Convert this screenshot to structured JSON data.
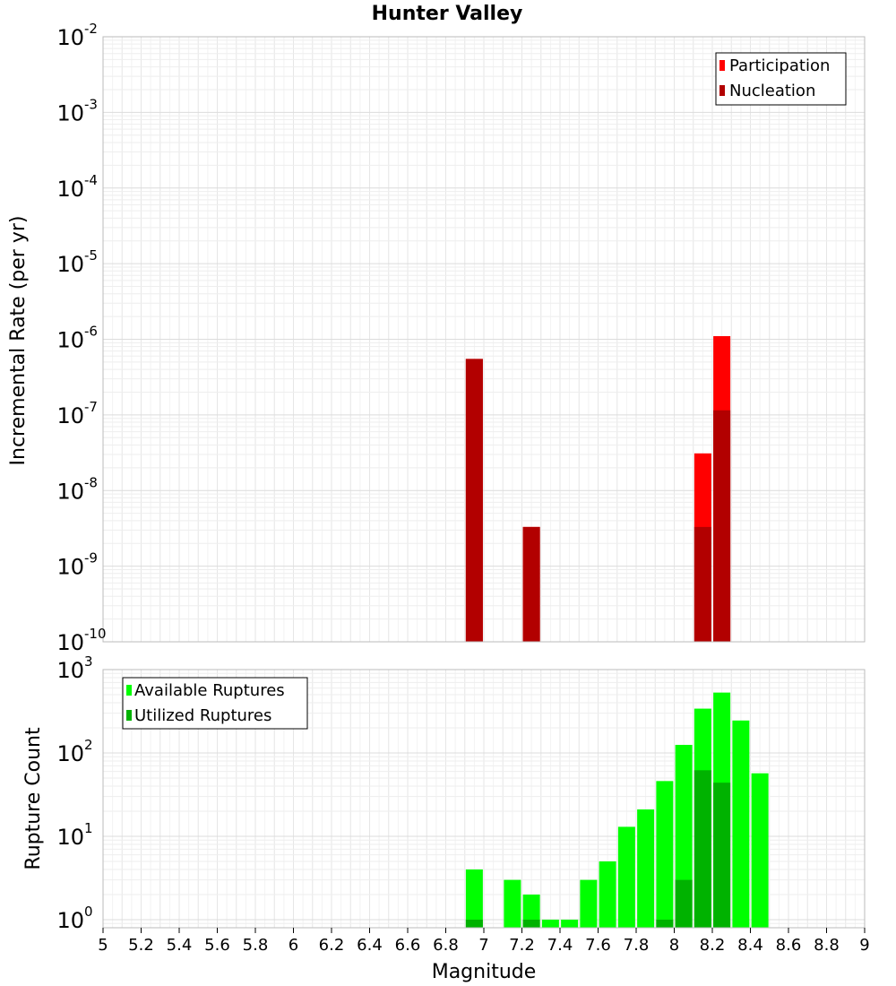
{
  "chart_data": [
    {
      "type": "bar",
      "title": "Hunter Valley",
      "ylabel": "Incremental Rate (per yr)",
      "xlabel": "",
      "x_range": [
        5,
        9
      ],
      "y_scale": "log",
      "ylim": [
        1e-10,
        0.01
      ],
      "y_ticks": [
        {
          "base": "10",
          "exp": "-2"
        },
        {
          "base": "10",
          "exp": "-3"
        },
        {
          "base": "10",
          "exp": "-4"
        },
        {
          "base": "10",
          "exp": "-5"
        },
        {
          "base": "10",
          "exp": "-6"
        },
        {
          "base": "10",
          "exp": "-7"
        },
        {
          "base": "10",
          "exp": "-8"
        },
        {
          "base": "10",
          "exp": "-9"
        },
        {
          "base": "10",
          "exp": "-10"
        }
      ],
      "grid": true,
      "legend_position": "top-right",
      "series": [
        {
          "name": "Participation",
          "color": "#ff0000",
          "x": [
            6.95,
            7.25,
            8.15,
            8.25
          ],
          "values": [
            5.5e-07,
            3.3e-09,
            3.1e-08,
            1.1e-06
          ]
        },
        {
          "name": "Nucleation",
          "color": "#b20000",
          "x": [
            6.95,
            7.25,
            8.15,
            8.25
          ],
          "values": [
            5.5e-07,
            3.3e-09,
            3.3e-09,
            1.15e-07
          ]
        }
      ]
    },
    {
      "type": "bar",
      "title": "",
      "ylabel": "Rupture Count",
      "xlabel": "Magnitude",
      "x_range": [
        5,
        9
      ],
      "x_ticks": [
        "5",
        "5.2",
        "5.4",
        "5.6",
        "5.8",
        "6",
        "6.2",
        "6.4",
        "6.6",
        "6.8",
        "7",
        "7.2",
        "7.4",
        "7.6",
        "7.8",
        "8",
        "8.2",
        "8.4",
        "8.6",
        "8.8",
        "9"
      ],
      "y_scale": "log",
      "ylim": [
        0.8,
        1000
      ],
      "y_ticks": [
        {
          "base": "10",
          "exp": "3"
        },
        {
          "base": "10",
          "exp": "2"
        },
        {
          "base": "10",
          "exp": "1"
        },
        {
          "base": "10",
          "exp": "0"
        }
      ],
      "grid": true,
      "legend_position": "top-left",
      "series": [
        {
          "name": "Available Ruptures",
          "color": "#00ff00",
          "x": [
            6.95,
            7.15,
            7.25,
            7.35,
            7.45,
            7.55,
            7.65,
            7.75,
            7.85,
            7.95,
            8.05,
            8.15,
            8.25,
            8.35,
            8.45
          ],
          "values": [
            4,
            3,
            2,
            1,
            1,
            3,
            5,
            13,
            21,
            46,
            125,
            340,
            530,
            245,
            57
          ]
        },
        {
          "name": "Utilized Ruptures",
          "color": "#00b200",
          "x": [
            6.95,
            7.25,
            7.95,
            8.05,
            8.15,
            8.25
          ],
          "values": [
            1,
            1,
            1,
            3,
            62,
            44
          ]
        }
      ]
    }
  ]
}
